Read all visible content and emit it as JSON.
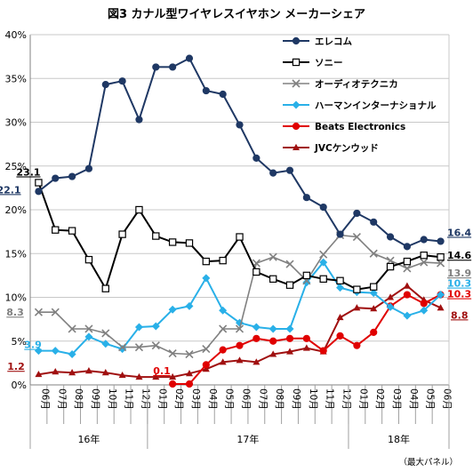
{
  "chart_data": {
    "type": "line",
    "title": "図3 カナル型ワイヤレスイヤホン メーカーシェア",
    "source": "（最大パネル）",
    "y_ticks": [
      "0%",
      "5%",
      "10%",
      "15%",
      "20%",
      "25%",
      "30%",
      "35%",
      "40%"
    ],
    "ylim": [
      0,
      40
    ],
    "months": [
      "06月",
      "07月",
      "08月",
      "09月",
      "10月",
      "11月",
      "12月",
      "01月",
      "02月",
      "03月",
      "04月",
      "05月",
      "06月",
      "07月",
      "08月",
      "09月",
      "10月",
      "11月",
      "12月",
      "01月",
      "02月",
      "03月",
      "04月",
      "05月",
      "06月"
    ],
    "years": [
      {
        "label": "16年",
        "start": 0,
        "end": 6
      },
      {
        "label": "17年",
        "start": 7,
        "end": 18
      },
      {
        "label": "18年",
        "start": 19,
        "end": 24
      }
    ],
    "grid": true,
    "legend_position": "top-right",
    "series": [
      {
        "name": "エレコム",
        "color": "#1f3864",
        "marker": "circle",
        "values": [
          22.1,
          23.6,
          23.8,
          24.7,
          34.3,
          34.7,
          30.3,
          36.3,
          36.3,
          37.3,
          33.6,
          33.2,
          29.7,
          25.9,
          24.2,
          24.5,
          21.4,
          20.3,
          17.2,
          19.6,
          18.6,
          16.9,
          15.8,
          16.6,
          16.4
        ],
        "start_label": "22.1",
        "end_label": "16.4",
        "label_color": "#1f3864"
      },
      {
        "name": "ソニー",
        "color": "#000000",
        "marker": "square",
        "values": [
          23.1,
          17.7,
          17.6,
          14.3,
          11.0,
          17.2,
          20.0,
          17.0,
          16.3,
          16.2,
          14.1,
          14.2,
          16.9,
          12.9,
          12.1,
          11.4,
          12.5,
          12.1,
          11.9,
          10.9,
          11.2,
          13.5,
          14.1,
          14.8,
          14.6
        ],
        "start_label": "23.1",
        "end_label": "14.6",
        "label_color": "#000000"
      },
      {
        "name": "オーディオテクニカ",
        "color": "#808080",
        "marker": "x",
        "values": [
          8.3,
          8.3,
          6.4,
          6.4,
          5.9,
          4.3,
          4.3,
          4.5,
          3.6,
          3.5,
          4.1,
          6.4,
          6.4,
          13.9,
          14.6,
          13.8,
          11.9,
          14.9,
          17.1,
          16.9,
          15.0,
          14.2,
          13.3,
          14.0,
          13.9
        ],
        "start_label": "8.3",
        "end_label": "13.9",
        "label_color": "#808080"
      },
      {
        "name": "ハーマンインターナショナル",
        "color": "#29b0e8",
        "marker": "diamond",
        "values": [
          3.9,
          3.9,
          3.5,
          5.5,
          4.7,
          4.1,
          6.6,
          6.7,
          8.6,
          9.0,
          12.2,
          8.5,
          7.1,
          6.6,
          6.4,
          6.4,
          11.7,
          14.0,
          11.1,
          10.6,
          10.5,
          8.9,
          7.9,
          8.5,
          10.3
        ],
        "start_label": "3.9",
        "end_label": "10.3",
        "label_color": "#29b0e8"
      },
      {
        "name": "Beats Electronics",
        "color": "#e00000",
        "marker": "circle",
        "values": [
          null,
          null,
          null,
          null,
          null,
          null,
          null,
          null,
          0.1,
          0.1,
          2.3,
          4.0,
          4.5,
          5.3,
          5.0,
          5.3,
          5.3,
          3.9,
          5.6,
          4.5,
          6.0,
          9.0,
          10.3,
          9.3,
          10.3
        ],
        "start_label": "0.1",
        "start_index": 8,
        "end_label": "10.3",
        "label_color": "#e00000"
      },
      {
        "name": "JVCケンウッド",
        "color": "#a01010",
        "marker": "triangle",
        "values": [
          1.2,
          1.5,
          1.4,
          1.6,
          1.4,
          1.1,
          0.9,
          0.9,
          0.9,
          1.3,
          1.8,
          2.6,
          2.8,
          2.6,
          3.5,
          3.8,
          4.2,
          3.8,
          7.7,
          8.8,
          8.7,
          10.0,
          11.3,
          9.7,
          8.8
        ],
        "start_label": "1.2",
        "end_label": "8.8",
        "label_color": "#a01010"
      }
    ]
  }
}
